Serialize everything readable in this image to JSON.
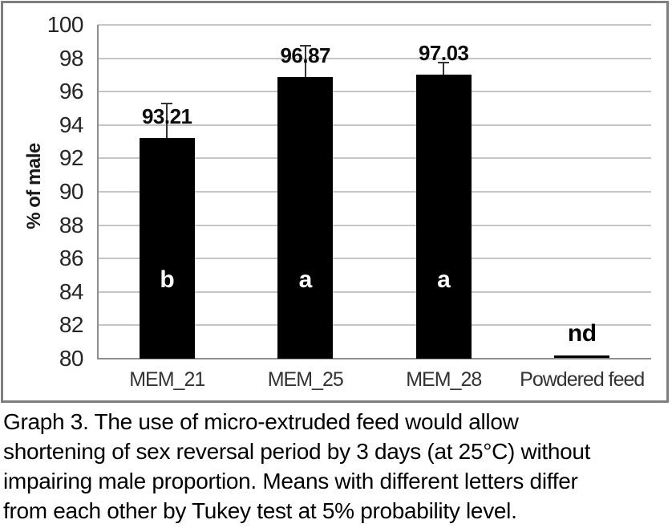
{
  "figure": {
    "border_color": "#7f7f7f",
    "background": "#ffffff"
  },
  "chart_data": {
    "type": "bar",
    "title": "",
    "xlabel": "",
    "ylabel": "% of male",
    "ylim": [
      80,
      100
    ],
    "ytick_step": 2,
    "yticks": [
      80,
      82,
      84,
      86,
      88,
      90,
      92,
      94,
      96,
      98,
      100
    ],
    "grid": true,
    "legend": false,
    "bar_color": "#000000",
    "gridline_color": "#c6c6c6",
    "axis_color": "#8f8f8f",
    "tick_label_color": "#262626",
    "categories": [
      "MEM_21",
      "MEM_25",
      "MEM_28",
      "Powdered feed"
    ],
    "values": [
      93.21,
      96.87,
      97.03,
      null
    ],
    "value_labels": [
      "93.21",
      "96.87",
      "97.03",
      ""
    ],
    "error_up": [
      2.1,
      1.9,
      0.7,
      null
    ],
    "significance_letters": [
      "b",
      "a",
      "a",
      "nd"
    ],
    "letter_colors": [
      "#ffffff",
      "#ffffff",
      "#ffffff",
      "#000000"
    ],
    "letter_positions": [
      84.7,
      84.7,
      84.7,
      81.5
    ],
    "no_data_value_line": 80.15
  },
  "caption": {
    "lines": [
      "Graph 3. The use of micro-extruded feed would allow",
      "shortening of sex reversal period by 3 days (at 25°C) without",
      "impairing male proportion. Means with different letters differ",
      "from each other by Tukey test at 5% probability level."
    ]
  }
}
